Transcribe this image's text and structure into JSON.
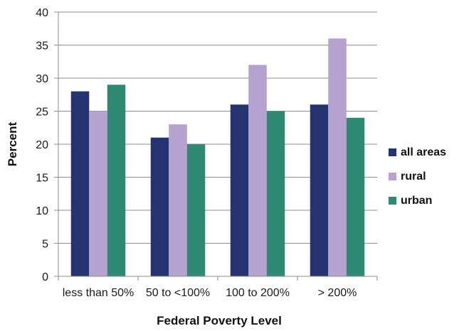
{
  "chart_data": {
    "type": "bar",
    "title": "",
    "xlabel": "Federal Poverty Level",
    "ylabel": "Percent",
    "ylim": [
      0,
      40
    ],
    "yticks": [
      0,
      5,
      10,
      15,
      20,
      25,
      30,
      35,
      40
    ],
    "grid": true,
    "legend_position": "right",
    "categories": [
      "less than 50%",
      "50 to <100%",
      "100 to 200%",
      "> 200%"
    ],
    "series": [
      {
        "name": "all areas",
        "color": "#253470",
        "values": [
          28,
          21,
          26,
          26
        ]
      },
      {
        "name": "rural",
        "color": "#b5a2cf",
        "values": [
          25,
          23,
          32,
          36
        ]
      },
      {
        "name": "urban",
        "color": "#2e8a72",
        "values": [
          29,
          20,
          25,
          24
        ]
      }
    ]
  }
}
